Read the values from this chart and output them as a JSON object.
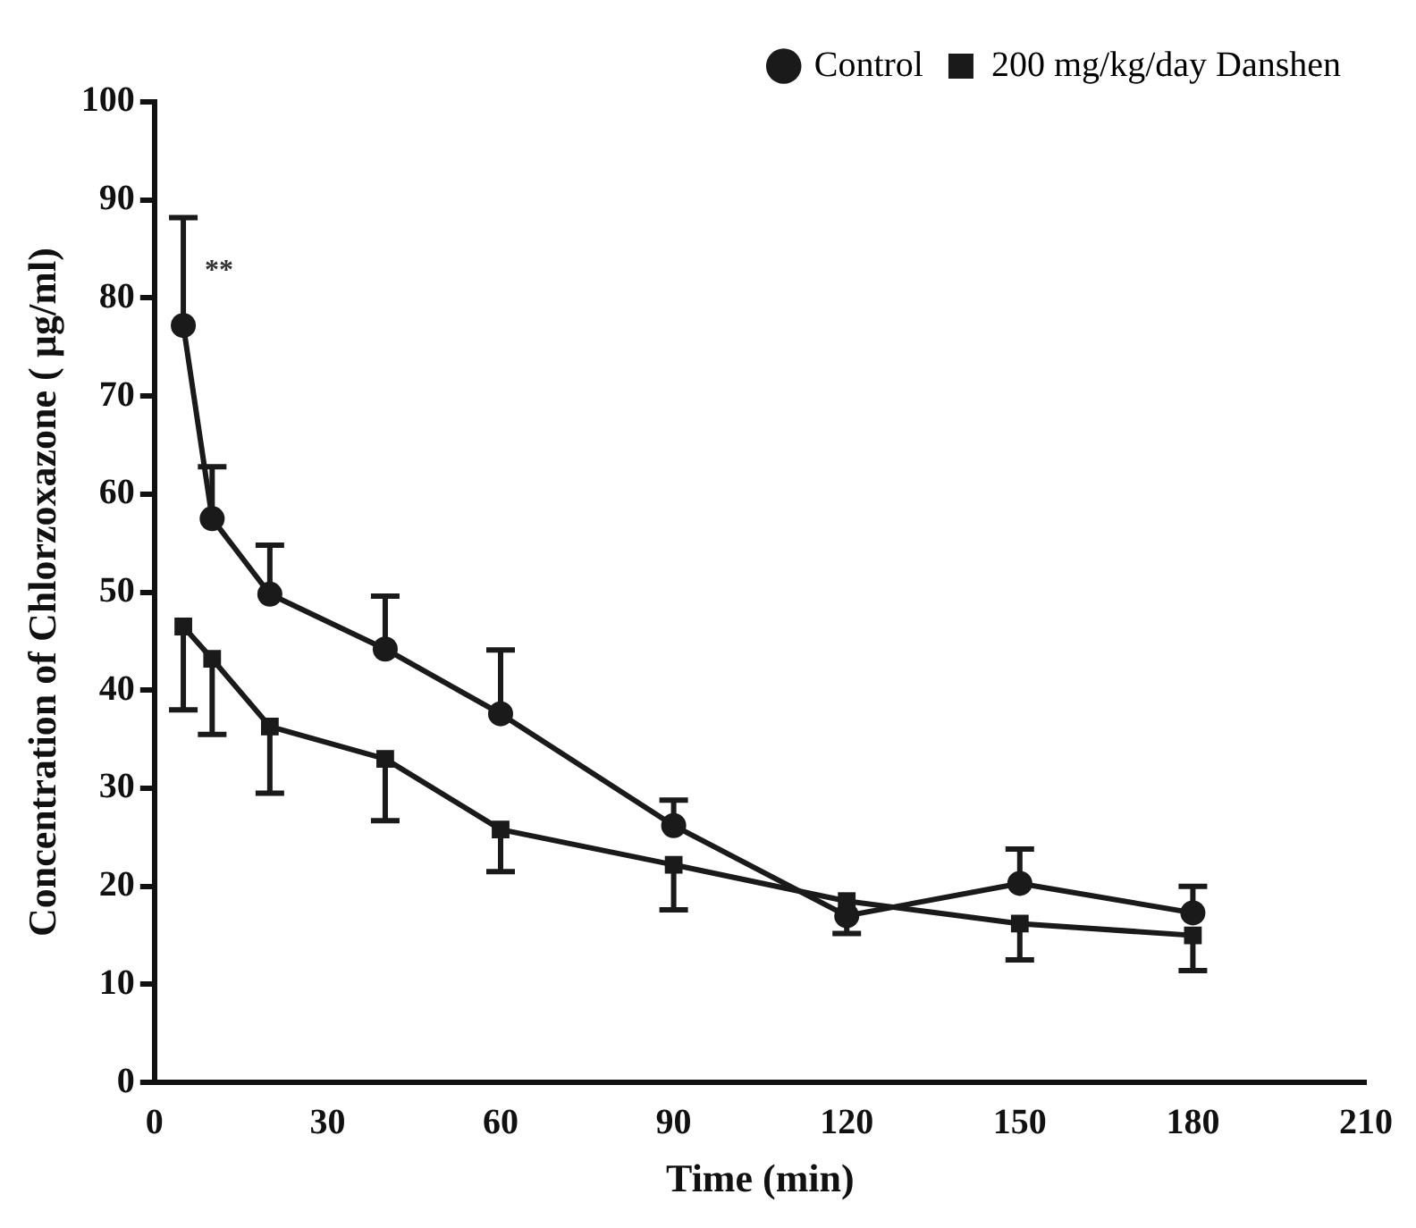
{
  "chart_data": {
    "type": "line",
    "xlabel": "Time (min)",
    "ylabel": "Concentration of Chlorzoxazone ( µg/ml)",
    "x": [
      5,
      10,
      20,
      40,
      60,
      90,
      120,
      150,
      180
    ],
    "series": [
      {
        "name": "Control",
        "color": "#1a1a1a",
        "marker": "circle",
        "values": [
          77.2,
          57.5,
          49.8,
          44.2,
          37.6,
          26.2,
          17,
          20.3,
          17.3
        ],
        "errors": [
          [
            77.2,
            88.2
          ],
          [
            57.5,
            62.8
          ],
          [
            49.8,
            54.8
          ],
          [
            44.2,
            49.6
          ],
          [
            37.6,
            44.1
          ],
          [
            26.2,
            28.8
          ],
          [
            15.2,
            17
          ],
          [
            20.3,
            23.8
          ],
          [
            17.3,
            20
          ]
        ]
      },
      {
        "name": "200 mg/kg/day Danshen",
        "color": "#1a1a1a",
        "marker": "square",
        "values": [
          46.5,
          43.2,
          36.3,
          33,
          25.8,
          22.2,
          18.5,
          16.2,
          15
        ],
        "errors": [
          [
            38,
            46.5
          ],
          [
            35.5,
            43.2
          ],
          [
            29.5,
            36.3
          ],
          [
            26.7,
            33
          ],
          [
            21.5,
            25.8
          ],
          [
            17.6,
            22.2
          ],
          null,
          [
            12.5,
            16.2
          ],
          [
            11.4,
            15
          ]
        ]
      }
    ],
    "xlim": [
      0,
      210
    ],
    "xticks": [
      0,
      30,
      60,
      90,
      120,
      150,
      180,
      210
    ],
    "ylim": [
      0,
      100
    ],
    "yticks": [
      0,
      10,
      20,
      30,
      40,
      50,
      60,
      70,
      80,
      90,
      100
    ],
    "annotations": [
      "**"
    ],
    "grid": false,
    "legend": "top right",
    "line_style": "solid"
  }
}
